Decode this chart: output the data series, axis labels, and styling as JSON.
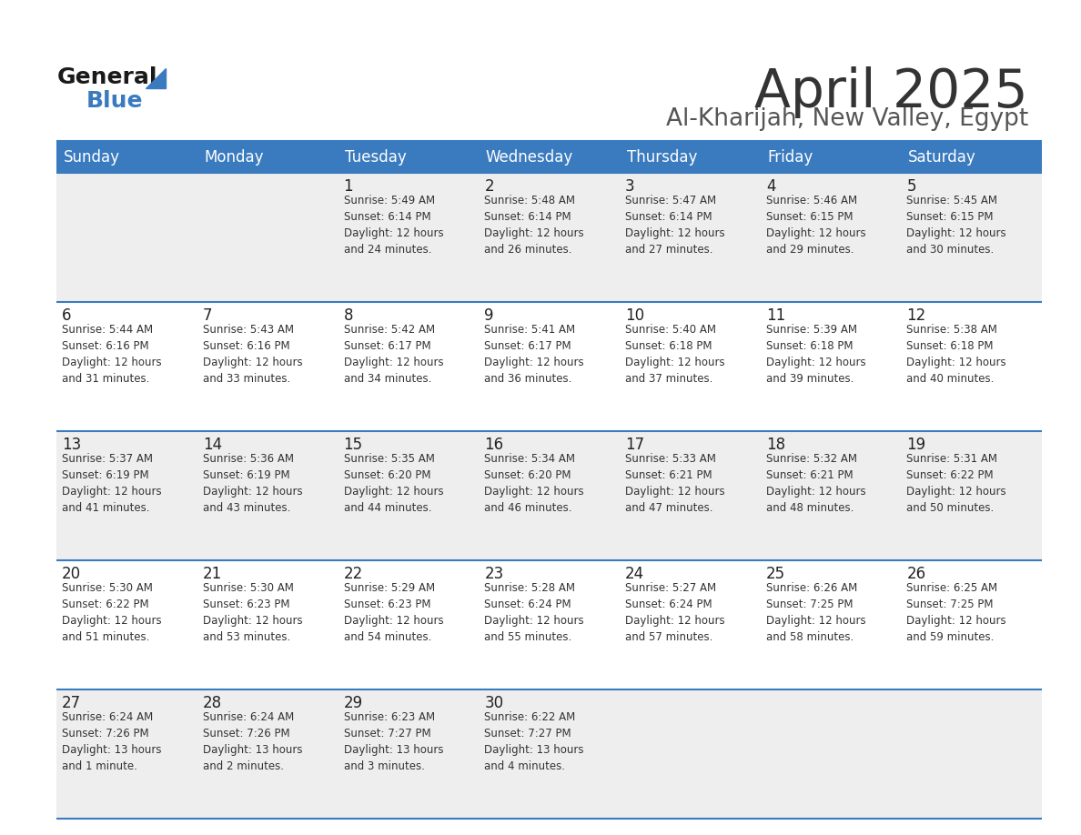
{
  "title": "April 2025",
  "subtitle": "Al-Kharijah, New Valley, Egypt",
  "days_of_week": [
    "Sunday",
    "Monday",
    "Tuesday",
    "Wednesday",
    "Thursday",
    "Friday",
    "Saturday"
  ],
  "header_bg": "#3a7bbf",
  "header_text": "#ffffff",
  "row_bg_odd": "#eeeeee",
  "row_bg_even": "#ffffff",
  "border_color": "#3a7bbf",
  "day_number_color": "#222222",
  "cell_text_color": "#333333",
  "title_color": "#333333",
  "subtitle_color": "#555555",
  "logo_general_color": "#1a1a1a",
  "logo_blue_color": "#3a7bbf",
  "logo_triangle_color": "#3a7bbf",
  "calendar": [
    [
      {
        "day": "",
        "info": ""
      },
      {
        "day": "",
        "info": ""
      },
      {
        "day": "1",
        "info": "Sunrise: 5:49 AM\nSunset: 6:14 PM\nDaylight: 12 hours\nand 24 minutes."
      },
      {
        "day": "2",
        "info": "Sunrise: 5:48 AM\nSunset: 6:14 PM\nDaylight: 12 hours\nand 26 minutes."
      },
      {
        "day": "3",
        "info": "Sunrise: 5:47 AM\nSunset: 6:14 PM\nDaylight: 12 hours\nand 27 minutes."
      },
      {
        "day": "4",
        "info": "Sunrise: 5:46 AM\nSunset: 6:15 PM\nDaylight: 12 hours\nand 29 minutes."
      },
      {
        "day": "5",
        "info": "Sunrise: 5:45 AM\nSunset: 6:15 PM\nDaylight: 12 hours\nand 30 minutes."
      }
    ],
    [
      {
        "day": "6",
        "info": "Sunrise: 5:44 AM\nSunset: 6:16 PM\nDaylight: 12 hours\nand 31 minutes."
      },
      {
        "day": "7",
        "info": "Sunrise: 5:43 AM\nSunset: 6:16 PM\nDaylight: 12 hours\nand 33 minutes."
      },
      {
        "day": "8",
        "info": "Sunrise: 5:42 AM\nSunset: 6:17 PM\nDaylight: 12 hours\nand 34 minutes."
      },
      {
        "day": "9",
        "info": "Sunrise: 5:41 AM\nSunset: 6:17 PM\nDaylight: 12 hours\nand 36 minutes."
      },
      {
        "day": "10",
        "info": "Sunrise: 5:40 AM\nSunset: 6:18 PM\nDaylight: 12 hours\nand 37 minutes."
      },
      {
        "day": "11",
        "info": "Sunrise: 5:39 AM\nSunset: 6:18 PM\nDaylight: 12 hours\nand 39 minutes."
      },
      {
        "day": "12",
        "info": "Sunrise: 5:38 AM\nSunset: 6:18 PM\nDaylight: 12 hours\nand 40 minutes."
      }
    ],
    [
      {
        "day": "13",
        "info": "Sunrise: 5:37 AM\nSunset: 6:19 PM\nDaylight: 12 hours\nand 41 minutes."
      },
      {
        "day": "14",
        "info": "Sunrise: 5:36 AM\nSunset: 6:19 PM\nDaylight: 12 hours\nand 43 minutes."
      },
      {
        "day": "15",
        "info": "Sunrise: 5:35 AM\nSunset: 6:20 PM\nDaylight: 12 hours\nand 44 minutes."
      },
      {
        "day": "16",
        "info": "Sunrise: 5:34 AM\nSunset: 6:20 PM\nDaylight: 12 hours\nand 46 minutes."
      },
      {
        "day": "17",
        "info": "Sunrise: 5:33 AM\nSunset: 6:21 PM\nDaylight: 12 hours\nand 47 minutes."
      },
      {
        "day": "18",
        "info": "Sunrise: 5:32 AM\nSunset: 6:21 PM\nDaylight: 12 hours\nand 48 minutes."
      },
      {
        "day": "19",
        "info": "Sunrise: 5:31 AM\nSunset: 6:22 PM\nDaylight: 12 hours\nand 50 minutes."
      }
    ],
    [
      {
        "day": "20",
        "info": "Sunrise: 5:30 AM\nSunset: 6:22 PM\nDaylight: 12 hours\nand 51 minutes."
      },
      {
        "day": "21",
        "info": "Sunrise: 5:30 AM\nSunset: 6:23 PM\nDaylight: 12 hours\nand 53 minutes."
      },
      {
        "day": "22",
        "info": "Sunrise: 5:29 AM\nSunset: 6:23 PM\nDaylight: 12 hours\nand 54 minutes."
      },
      {
        "day": "23",
        "info": "Sunrise: 5:28 AM\nSunset: 6:24 PM\nDaylight: 12 hours\nand 55 minutes."
      },
      {
        "day": "24",
        "info": "Sunrise: 5:27 AM\nSunset: 6:24 PM\nDaylight: 12 hours\nand 57 minutes."
      },
      {
        "day": "25",
        "info": "Sunrise: 6:26 AM\nSunset: 7:25 PM\nDaylight: 12 hours\nand 58 minutes."
      },
      {
        "day": "26",
        "info": "Sunrise: 6:25 AM\nSunset: 7:25 PM\nDaylight: 12 hours\nand 59 minutes."
      }
    ],
    [
      {
        "day": "27",
        "info": "Sunrise: 6:24 AM\nSunset: 7:26 PM\nDaylight: 13 hours\nand 1 minute."
      },
      {
        "day": "28",
        "info": "Sunrise: 6:24 AM\nSunset: 7:26 PM\nDaylight: 13 hours\nand 2 minutes."
      },
      {
        "day": "29",
        "info": "Sunrise: 6:23 AM\nSunset: 7:27 PM\nDaylight: 13 hours\nand 3 minutes."
      },
      {
        "day": "30",
        "info": "Sunrise: 6:22 AM\nSunset: 7:27 PM\nDaylight: 13 hours\nand 4 minutes."
      },
      {
        "day": "",
        "info": ""
      },
      {
        "day": "",
        "info": ""
      },
      {
        "day": "",
        "info": ""
      }
    ]
  ]
}
